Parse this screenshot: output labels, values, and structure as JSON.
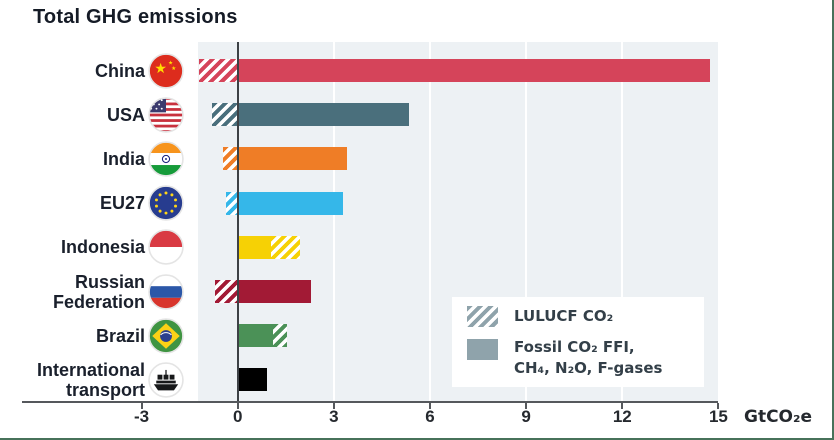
{
  "title": "Total GHG emissions",
  "axis": {
    "tick_labels": [
      "-3",
      "0",
      "3",
      "6",
      "9",
      "12",
      "15"
    ],
    "tick_values": [
      -3,
      0,
      3,
      6,
      9,
      12,
      15
    ],
    "unit_label": "GtCO₂e"
  },
  "legend": {
    "items": [
      {
        "label": "LULUCF CO₂",
        "swatch": "hatched",
        "color": "#8fa3ab"
      },
      {
        "label": "Fossil CO₂ FFI,\nCH₄, N₂O, F-gases",
        "swatch": "solid",
        "color": "#8fa3ab"
      }
    ]
  },
  "chart_data": {
    "type": "bar",
    "orientation": "horizontal",
    "title": "Total GHG emissions",
    "unit": "GtCO₂e",
    "xlabel": "GtCO₂e",
    "axis_range": [
      -3,
      15
    ],
    "grid": true,
    "legend_position": "inside-bottom-right",
    "categories": [
      "China",
      "USA",
      "India",
      "EU27",
      "Indonesia",
      "Russian Federation",
      "Brazil",
      "International transport"
    ],
    "label_lines": [
      [
        "China"
      ],
      [
        "USA"
      ],
      [
        "India"
      ],
      [
        "EU27"
      ],
      [
        "Indonesia"
      ],
      [
        "Russian",
        "Federation"
      ],
      [
        "Brazil"
      ],
      [
        "International",
        "transport"
      ]
    ],
    "series": [
      {
        "name": "Fossil CO₂ FFI, CH₄, N₂O, F-gases",
        "values": [
          14.75,
          5.35,
          3.4,
          3.3,
          1.05,
          2.3,
          1.1,
          0.9
        ]
      },
      {
        "name": "LULUCF CO₂",
        "values": [
          -1.2,
          -0.8,
          -0.45,
          -0.35,
          0.9,
          -0.7,
          0.45,
          0
        ]
      }
    ],
    "bar_colors": [
      "#d5445a",
      "#4a6f7c",
      "#ef7d26",
      "#35b7e9",
      "#f6d105",
      "#a21a35",
      "#4b9157",
      "#000000"
    ],
    "flags": [
      "china-flag-icon",
      "usa-flag-icon",
      "india-flag-icon",
      "eu27-flag-icon",
      "indonesia-flag-icon",
      "russia-flag-icon",
      "brazil-flag-icon",
      "international-transport-ship-icon"
    ]
  },
  "colors": {
    "plot_background": "#edf1f4",
    "legend_swatch": "#8fa3ab",
    "page_border_green": "#47725a",
    "zero_line": "#3d4145",
    "text_dark": "#1a202c"
  }
}
